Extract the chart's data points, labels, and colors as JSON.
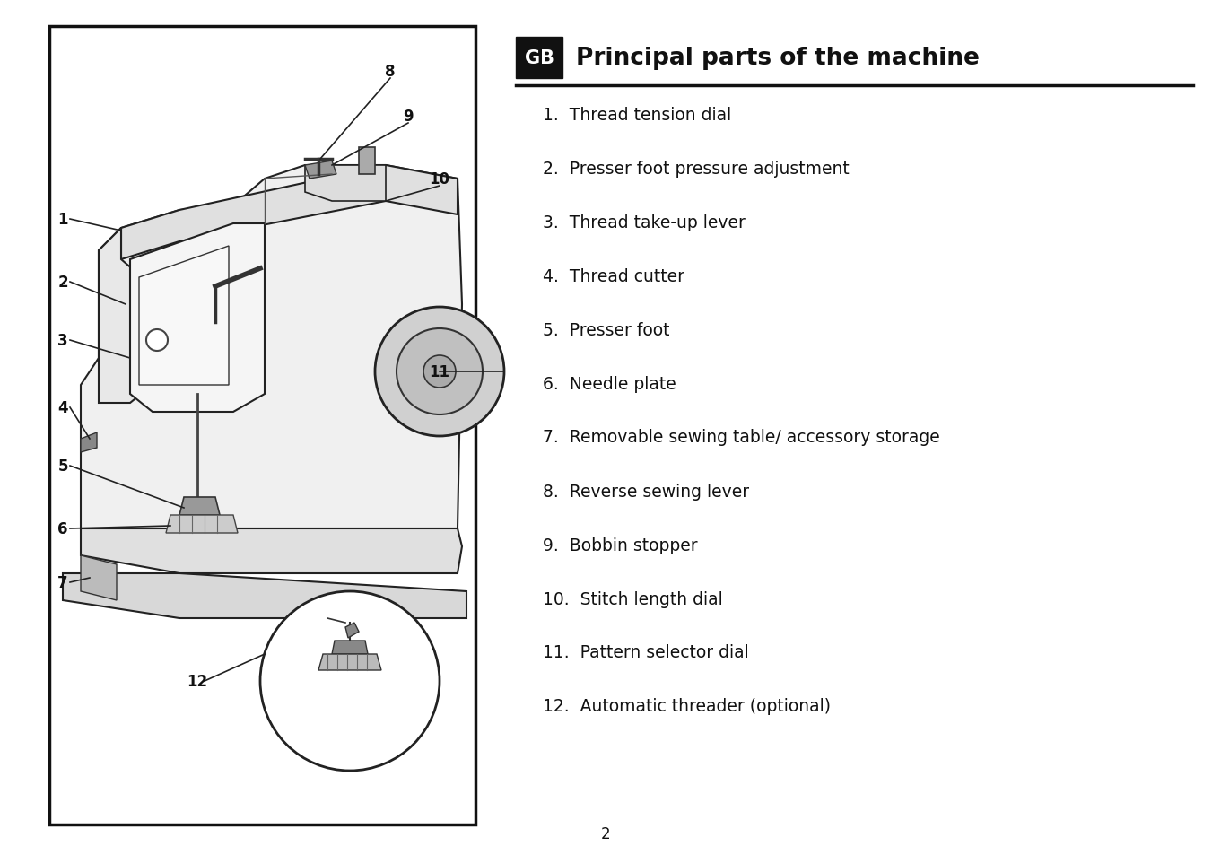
{
  "title": "Principal parts of the machine",
  "gb_label": "GB",
  "items": [
    "1.  Thread tension dial",
    "2.  Presser foot pressure adjustment",
    "3.  Thread take-up lever",
    "4.  Thread cutter",
    "5.  Presser foot",
    "6.  Needle plate",
    "7.  Removable sewing table/ accessory storage",
    "8.  Reverse sewing lever",
    "9.  Bobbin stopper",
    "10.  Stitch length dial",
    "11.  Pattern selector dial",
    "12.  Automatic threader (optional)"
  ],
  "page_number": "2",
  "background": "#ffffff",
  "border_color": "#111111",
  "title_fontsize": 19,
  "item_fontsize": 13.5
}
